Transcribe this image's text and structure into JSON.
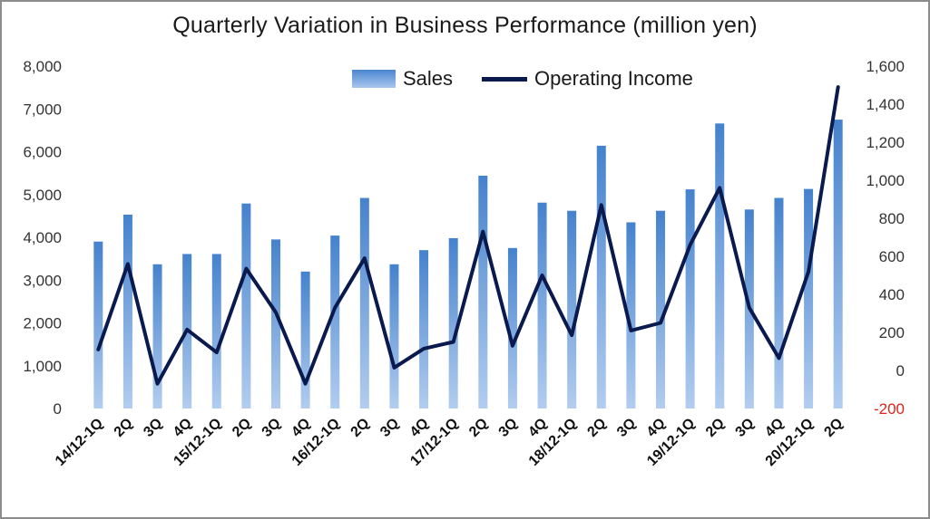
{
  "chart_data": {
    "type": "bar",
    "title": "Quarterly Variation in Business Performance (million yen)",
    "categories": [
      "14/12-1Q",
      "2Q",
      "3Q",
      "4Q",
      "15/12-1Q",
      "2Q",
      "3Q",
      "4Q",
      "16/12-1Q",
      "2Q",
      "3Q",
      "4Q",
      "17/12-1Q",
      "2Q",
      "3Q",
      "4Q",
      "18/12-1Q",
      "2Q",
      "3Q",
      "4Q",
      "19/12-1Q",
      "2Q",
      "3Q",
      "4Q",
      "20/12-1Q",
      "2Q"
    ],
    "series": [
      {
        "name": "Sales",
        "type": "bar",
        "axis": "left",
        "color": "#4a86cf",
        "values": [
          3900,
          4530,
          3370,
          3610,
          3610,
          4790,
          3950,
          3200,
          4040,
          4920,
          3370,
          3700,
          3980,
          5440,
          3750,
          4810,
          4620,
          6140,
          4350,
          4620,
          5120,
          6660,
          4650,
          4920,
          5130,
          6750
        ]
      },
      {
        "name": "Operating Income",
        "type": "line",
        "axis": "right",
        "color": "#0a1a4f",
        "values": [
          110,
          560,
          -70,
          215,
          95,
          535,
          305,
          -70,
          330,
          590,
          15,
          115,
          150,
          730,
          130,
          500,
          185,
          870,
          210,
          250,
          660,
          960,
          330,
          65,
          520,
          1490
        ]
      }
    ],
    "y_left": {
      "min": 0,
      "max": 8000,
      "ticks": [
        "0",
        "1,000",
        "2,000",
        "3,000",
        "4,000",
        "5,000",
        "6,000",
        "7,000",
        "8,000"
      ]
    },
    "y_right": {
      "min": -200,
      "max": 1600,
      "ticks": [
        "-200",
        "0",
        "200",
        "400",
        "600",
        "800",
        "1,000",
        "1,200",
        "1,400",
        "1,600"
      ]
    },
    "grid": false,
    "legend": "top-center",
    "negative_tick_color": "#e0231c"
  }
}
